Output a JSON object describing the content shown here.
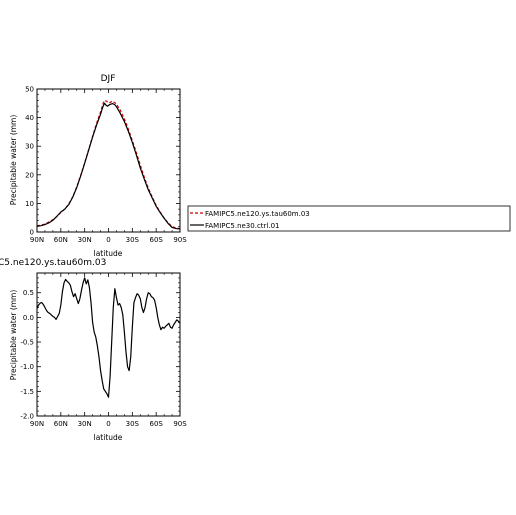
{
  "chart_data": [
    {
      "type": "line",
      "title": "DJF",
      "xlabel": "latitude",
      "ylabel": "Precipitable water (mm)",
      "xlim": [
        90,
        -90
      ],
      "ylim": [
        0,
        50
      ],
      "xticks": [
        90,
        60,
        30,
        0,
        -30,
        -60,
        -90
      ],
      "xtick_labels": [
        "90N",
        "60N",
        "30N",
        "0",
        "30S",
        "60S",
        "90S"
      ],
      "yticks": [
        0,
        10,
        20,
        30,
        40,
        50
      ],
      "ytick_labels": [
        "0",
        "10",
        "20",
        "30",
        "40",
        "50"
      ],
      "grid": false,
      "legend_position": "right",
      "series": [
        {
          "name": "FAMIPC5.ne120.ys.tau60m.03",
          "color": "#cc0000",
          "dash": "dashed",
          "x": [
            90,
            85,
            80,
            75,
            70,
            65,
            60,
            55,
            50,
            45,
            40,
            35,
            30,
            25,
            20,
            15,
            10,
            7,
            5,
            3,
            1,
            0,
            -2,
            -5,
            -8,
            -10,
            -15,
            -20,
            -25,
            -30,
            -35,
            -40,
            -45,
            -50,
            -55,
            -60,
            -65,
            -70,
            -75,
            -80,
            -85,
            -90
          ],
          "y": [
            2.2,
            2.4,
            2.8,
            3.5,
            4.3,
            5.4,
            6.8,
            8.0,
            9.8,
            12.3,
            15.8,
            19.8,
            24.2,
            28.8,
            33.5,
            38.0,
            42.0,
            44.8,
            46.0,
            45.8,
            45.4,
            45.1,
            45.3,
            45.8,
            45.2,
            44.7,
            42.5,
            39.5,
            36.0,
            32.0,
            27.8,
            23.4,
            19.2,
            15.4,
            12.3,
            9.3,
            7.0,
            4.9,
            3.2,
            1.9,
            1.4,
            1.2
          ]
        },
        {
          "name": "FAMIPC5.ne30.ctrl.01",
          "color": "#000000",
          "dash": "solid",
          "x": [
            90,
            85,
            80,
            75,
            70,
            65,
            60,
            55,
            50,
            45,
            40,
            35,
            30,
            25,
            20,
            15,
            10,
            7,
            5,
            3,
            1,
            0,
            -2,
            -5,
            -8,
            -10,
            -15,
            -20,
            -25,
            -30,
            -35,
            -40,
            -45,
            -50,
            -55,
            -60,
            -65,
            -70,
            -75,
            -80,
            -85,
            -90
          ],
          "y": [
            2.0,
            2.2,
            2.6,
            3.2,
            4.1,
            5.5,
            7.0,
            8.0,
            9.6,
            12.2,
            15.5,
            19.6,
            24.0,
            28.6,
            33.2,
            37.4,
            41.2,
            43.8,
            45.0,
            44.3,
            44.0,
            44.3,
            44.6,
            44.9,
            44.5,
            43.8,
            41.4,
            38.6,
            35.2,
            31.3,
            27.0,
            22.4,
            18.5,
            14.8,
            11.9,
            9.0,
            6.8,
            4.8,
            3.0,
            1.6,
            1.2,
            1.1
          ]
        }
      ]
    },
    {
      "type": "line",
      "title": "C5.ne120.ys.tau60m.03",
      "xlabel": "latitude",
      "ylabel": "Precipitable water (mm)",
      "xlim": [
        90,
        -90
      ],
      "ylim": [
        -2.0,
        0.9
      ],
      "xticks": [
        90,
        60,
        30,
        0,
        -30,
        -60,
        -90
      ],
      "xtick_labels": [
        "90N",
        "60N",
        "30N",
        "0",
        "30S",
        "60S",
        "90S"
      ],
      "yticks": [
        -2.0,
        -1.5,
        -1.0,
        -0.5,
        0.0,
        0.5
      ],
      "ytick_labels": [
        "-2.0",
        "-1.5",
        "-1.0",
        "-0.5",
        "0.0",
        "0.5"
      ],
      "grid": false,
      "series": [
        {
          "color": "#000000",
          "dash": "solid",
          "x": [
            90,
            88,
            86,
            84,
            82,
            80,
            78,
            76,
            74,
            72,
            70,
            68,
            66,
            64,
            62,
            60,
            58,
            56,
            54,
            52,
            50,
            48,
            46,
            44,
            42,
            40,
            38,
            36,
            34,
            32,
            30,
            28,
            26,
            24,
            22,
            20,
            18,
            16,
            14,
            12,
            10,
            8,
            6,
            4,
            2,
            0,
            -2,
            -4,
            -6,
            -8,
            -10,
            -12,
            -14,
            -16,
            -18,
            -20,
            -22,
            -24,
            -26,
            -28,
            -30,
            -32,
            -34,
            -36,
            -38,
            -40,
            -42,
            -44,
            -46,
            -48,
            -50,
            -52,
            -54,
            -56,
            -58,
            -60,
            -62,
            -64,
            -66,
            -68,
            -70,
            -72,
            -74,
            -76,
            -78,
            -80,
            -82,
            -84,
            -86,
            -88,
            -90
          ],
          "y": [
            0.18,
            0.25,
            0.29,
            0.3,
            0.26,
            0.2,
            0.14,
            0.1,
            0.08,
            0.05,
            0.02,
            0.0,
            -0.04,
            0.02,
            0.08,
            0.25,
            0.52,
            0.7,
            0.77,
            0.73,
            0.7,
            0.65,
            0.52,
            0.42,
            0.48,
            0.38,
            0.28,
            0.38,
            0.55,
            0.7,
            0.8,
            0.68,
            0.76,
            0.6,
            0.3,
            -0.1,
            -0.3,
            -0.4,
            -0.58,
            -0.8,
            -1.08,
            -1.28,
            -1.45,
            -1.5,
            -1.55,
            -1.62,
            -1.2,
            -0.5,
            0.2,
            0.58,
            0.4,
            0.25,
            0.28,
            0.2,
            0.05,
            -0.3,
            -0.7,
            -1.0,
            -1.08,
            -0.8,
            -0.2,
            0.3,
            0.4,
            0.48,
            0.45,
            0.38,
            0.2,
            0.1,
            0.2,
            0.38,
            0.5,
            0.48,
            0.42,
            0.4,
            0.35,
            0.2,
            0.0,
            -0.15,
            -0.25,
            -0.2,
            -0.22,
            -0.18,
            -0.15,
            -0.12,
            -0.2,
            -0.22,
            -0.15,
            -0.1,
            -0.05,
            -0.08,
            -0.12
          ]
        }
      ]
    }
  ]
}
